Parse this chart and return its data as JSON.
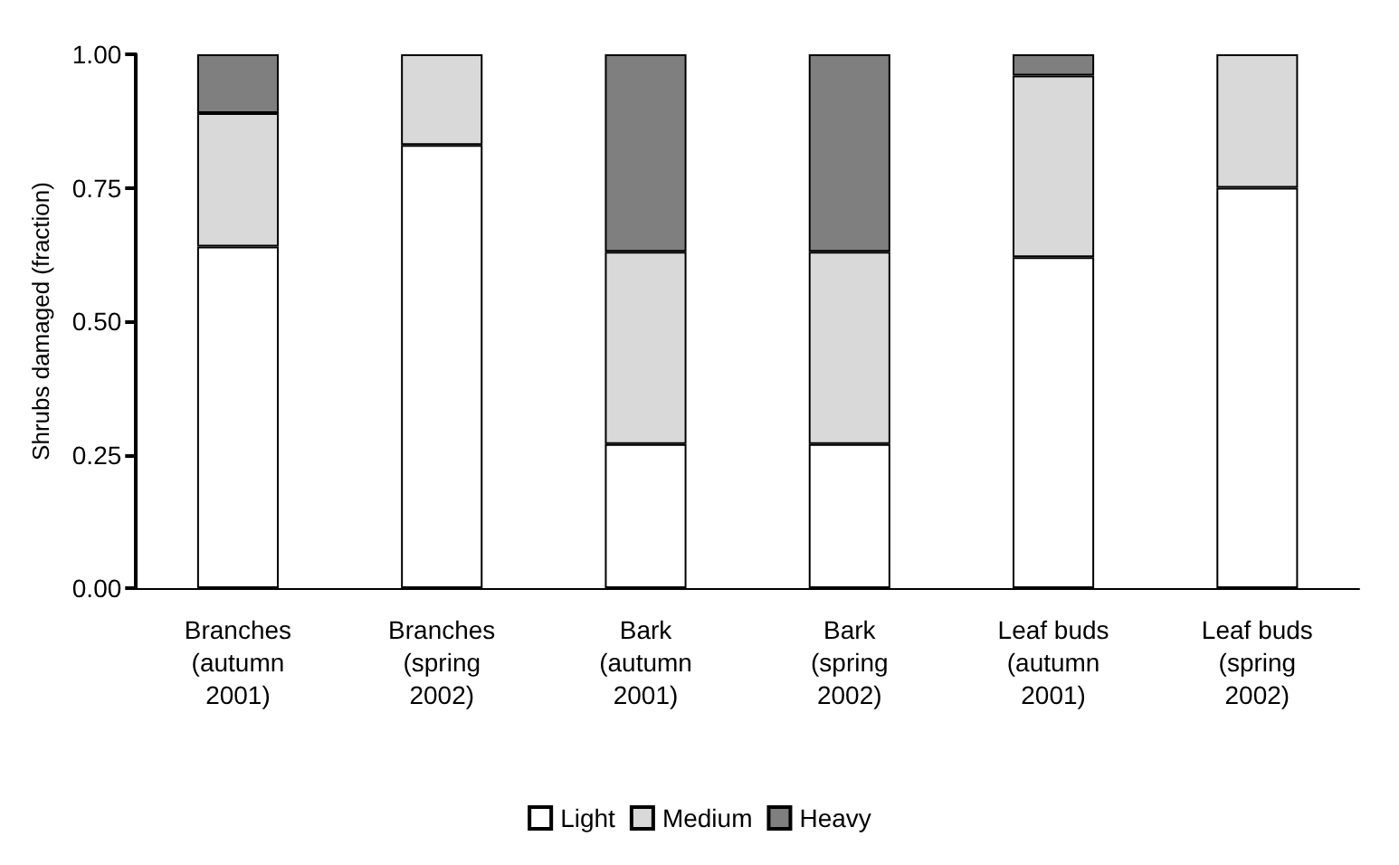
{
  "chart_data": {
    "type": "bar",
    "stacked": true,
    "ylabel": "Shrubs damaged (fraction)",
    "categories": [
      "Branches\n(autumn\n2001)",
      "Branches\n(spring\n2002)",
      "Bark\n(autumn\n2001)",
      "Bark\n(spring\n2002)",
      "Leaf buds\n(autumn\n2001)",
      "Leaf buds\n(spring\n2002)"
    ],
    "series": [
      {
        "name": "Light",
        "color": "#ffffff",
        "values": [
          0.64,
          0.83,
          0.27,
          0.27,
          0.62,
          0.75
        ]
      },
      {
        "name": "Medium",
        "color": "#d9d9d9",
        "values": [
          0.25,
          0.17,
          0.36,
          0.36,
          0.34,
          0.25
        ]
      },
      {
        "name": "Heavy",
        "color": "#7f7f7f",
        "values": [
          0.11,
          0,
          0.37,
          0.37,
          0.04,
          0
        ]
      }
    ],
    "ylim": [
      0,
      1
    ],
    "yticks": [
      {
        "value": 0,
        "label": "0.00"
      },
      {
        "value": 0.25,
        "label": "0.25"
      },
      {
        "value": 0.5,
        "label": "0.50"
      },
      {
        "value": 0.75,
        "label": "0.75"
      },
      {
        "value": 1,
        "label": "1.00"
      }
    ],
    "grid": false,
    "legend": "bottom"
  }
}
